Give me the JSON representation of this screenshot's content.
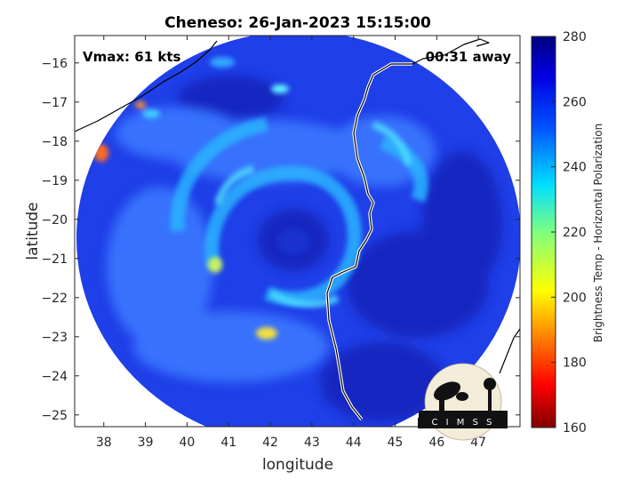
{
  "chart_data": {
    "type": "heatmap",
    "title": "Cheneso: 26-Jan-2023 15:15:00",
    "xlabel": "longitude",
    "ylabel": "latitude",
    "xlim": [
      37.3,
      48.0
    ],
    "ylim": [
      -25.3,
      -15.3
    ],
    "xticks": [
      38,
      39,
      40,
      41,
      42,
      43,
      44,
      45,
      46,
      47
    ],
    "yticks": [
      -16,
      -17,
      -18,
      -19,
      -20,
      -21,
      -22,
      -23,
      -24,
      -25
    ],
    "annotations": {
      "vmax": "Vmax: 61 kts",
      "time_away": "00:31 away"
    },
    "colorbar": {
      "label": "Brightness Temp - Horizontal Polarization",
      "range": [
        160,
        280
      ],
      "ticks": [
        160,
        180,
        200,
        220,
        240,
        260,
        280
      ],
      "colormap": "jet"
    },
    "swath": {
      "center_lon": 42.6,
      "center_lat": -20.1,
      "shape": "circular"
    },
    "logo_text": "CIMSS"
  }
}
